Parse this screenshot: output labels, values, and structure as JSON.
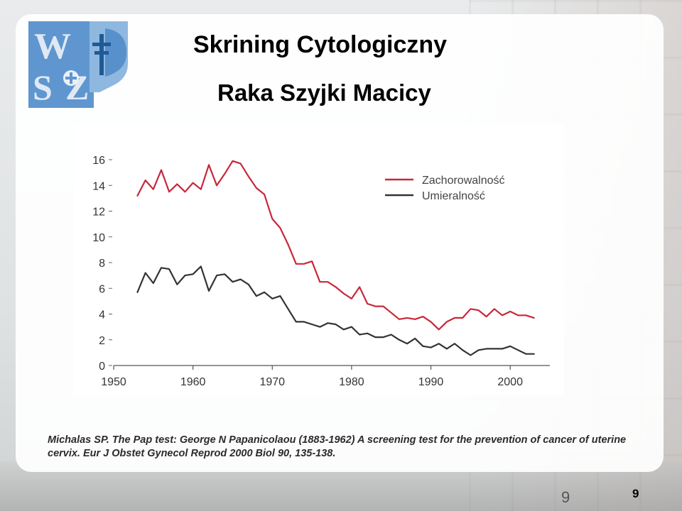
{
  "slide": {
    "title": "Skrining Cytologiczny",
    "subtitle": "Raka Szyjki Macicy",
    "citation": "Michalas SP. The Pap test: George N Papanicolaou (1883-1962) A screening test for the prevention of cancer of uterine cervix. Eur J Obstet Gynecol Reprod 2000 Biol 90, 135-138.",
    "slide_number_plain": "9",
    "slide_number_bold": "9"
  },
  "logo": {
    "name": "institution-logo",
    "colors": {
      "blue": "#3d7fc3",
      "light_blue": "#8fb8e0"
    }
  },
  "chart_data": {
    "type": "line",
    "title": "",
    "xlabel": "",
    "ylabel": "",
    "xlim": [
      1950,
      2005
    ],
    "ylim": [
      0,
      16
    ],
    "x_ticks": [
      1950,
      1960,
      1970,
      1980,
      1990,
      2000
    ],
    "y_ticks": [
      0,
      2,
      4,
      6,
      8,
      10,
      12,
      14,
      16
    ],
    "grid": false,
    "legend_position": "top-right",
    "series": [
      {
        "name": "Zachorowalność",
        "color": "#c8283a",
        "x": [
          1953,
          1954,
          1955,
          1956,
          1957,
          1958,
          1959,
          1960,
          1961,
          1962,
          1963,
          1964,
          1965,
          1966,
          1967,
          1968,
          1969,
          1970,
          1971,
          1972,
          1973,
          1974,
          1975,
          1976,
          1977,
          1978,
          1979,
          1980,
          1981,
          1982,
          1983,
          1984,
          1985,
          1986,
          1987,
          1988,
          1989,
          1990,
          1991,
          1992,
          1993,
          1994,
          1995,
          1996,
          1997,
          1998,
          1999,
          2000,
          2001,
          2002,
          2003
        ],
        "values": [
          13.2,
          14.4,
          13.7,
          15.2,
          13.5,
          14.1,
          13.5,
          14.2,
          13.7,
          15.6,
          14.0,
          14.9,
          15.9,
          15.7,
          14.7,
          13.8,
          13.3,
          11.4,
          10.7,
          9.4,
          7.9,
          7.9,
          8.1,
          6.5,
          6.5,
          6.1,
          5.6,
          5.2,
          6.1,
          4.8,
          4.6,
          4.6,
          4.1,
          3.6,
          3.7,
          3.6,
          3.8,
          3.4,
          2.8,
          3.4,
          3.7,
          3.7,
          4.4,
          4.3,
          3.8,
          4.4,
          3.9,
          4.2,
          3.9,
          3.9,
          3.7
        ]
      },
      {
        "name": "Umieralność",
        "color": "#333333",
        "x": [
          1953,
          1954,
          1955,
          1956,
          1957,
          1958,
          1959,
          1960,
          1961,
          1962,
          1963,
          1964,
          1965,
          1966,
          1967,
          1968,
          1969,
          1970,
          1971,
          1972,
          1973,
          1974,
          1975,
          1976,
          1977,
          1978,
          1979,
          1980,
          1981,
          1982,
          1983,
          1984,
          1985,
          1986,
          1987,
          1988,
          1989,
          1990,
          1991,
          1992,
          1993,
          1994,
          1995,
          1996,
          1997,
          1998,
          1999,
          2000,
          2001,
          2002,
          2003
        ],
        "values": [
          5.7,
          7.2,
          6.4,
          7.6,
          7.5,
          6.3,
          7.0,
          7.1,
          7.7,
          5.8,
          7.0,
          7.1,
          6.5,
          6.7,
          6.3,
          5.4,
          5.7,
          5.2,
          5.4,
          4.4,
          3.4,
          3.4,
          3.2,
          3.0,
          3.3,
          3.2,
          2.8,
          3.0,
          2.4,
          2.5,
          2.2,
          2.2,
          2.4,
          2.0,
          1.7,
          2.1,
          1.5,
          1.4,
          1.7,
          1.3,
          1.7,
          1.2,
          0.8,
          1.2,
          1.3,
          1.3,
          1.3,
          1.5,
          1.2,
          0.9,
          0.9
        ]
      }
    ]
  }
}
